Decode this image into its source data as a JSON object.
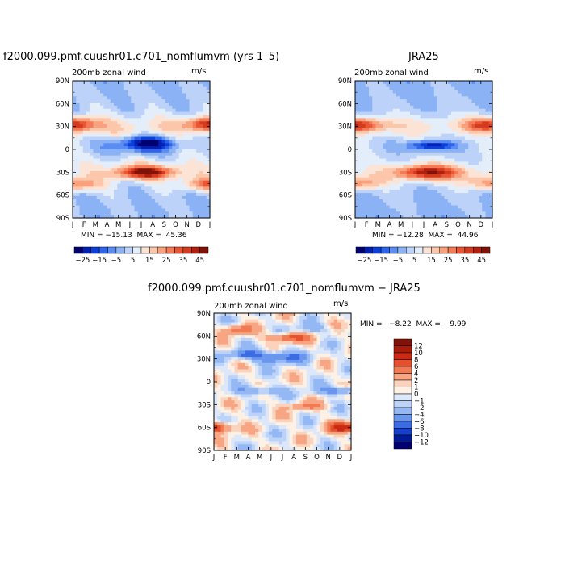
{
  "chart_data": [
    {
      "type": "heatmap",
      "id": "model",
      "title": "f2000.099.pmf.cuushr01.c701_nomflumvm (yrs 1–5)",
      "subtitle_left": "200mb  zonal  wind",
      "subtitle_right": "m/s",
      "x_ticks": [
        "J",
        "F",
        "M",
        "A",
        "M",
        "J",
        "J",
        "A",
        "S",
        "O",
        "N",
        "D",
        "J"
      ],
      "y_ticks": [
        "90N",
        "60N",
        "30N",
        "0",
        "30S",
        "60S",
        "90S"
      ],
      "y_values": [
        90,
        60,
        30,
        0,
        -30,
        -60,
        -90
      ],
      "x_range": [
        1,
        13
      ],
      "y_range": [
        -90,
        90
      ],
      "min_text": "MIN = −15.13  MAX =  45.36",
      "min": -15.13,
      "max": 45.36,
      "colorbar_labels": [
        "−25",
        "−15",
        "−5",
        "5",
        "15",
        "25",
        "35",
        "45"
      ],
      "colorbar_levels": [
        -30,
        -25,
        -20,
        -15,
        -10,
        -5,
        0,
        5,
        10,
        15,
        20,
        25,
        30,
        35,
        40,
        45,
        50
      ]
    },
    {
      "type": "heatmap",
      "id": "obs",
      "title": "JRA25",
      "subtitle_left": "200mb  zonal  wind",
      "subtitle_right": "m/s",
      "x_ticks": [
        "J",
        "F",
        "M",
        "A",
        "M",
        "J",
        "J",
        "A",
        "S",
        "O",
        "N",
        "D",
        "J"
      ],
      "y_ticks": [
        "90N",
        "60N",
        "30N",
        "0",
        "30S",
        "60S",
        "90S"
      ],
      "y_values": [
        90,
        60,
        30,
        0,
        -30,
        -60,
        -90
      ],
      "x_range": [
        1,
        13
      ],
      "y_range": [
        -90,
        90
      ],
      "min_text": "MIN = −12.28  MAX =  44.96",
      "min": -12.28,
      "max": 44.96,
      "colorbar_labels": [
        "−25",
        "−15",
        "−5",
        "5",
        "15",
        "25",
        "35",
        "45"
      ],
      "colorbar_levels": [
        -30,
        -25,
        -20,
        -15,
        -10,
        -5,
        0,
        5,
        10,
        15,
        20,
        25,
        30,
        35,
        40,
        45,
        50
      ]
    },
    {
      "type": "heatmap",
      "id": "diff",
      "title": "f2000.099.pmf.cuushr01.c701_nomflumvm  −  JRA25",
      "subtitle_left": "200mb  zonal  wind",
      "subtitle_right": "m/s",
      "x_ticks": [
        "J",
        "F",
        "M",
        "A",
        "M",
        "J",
        "J",
        "A",
        "S",
        "O",
        "N",
        "D",
        "J"
      ],
      "y_ticks": [
        "90N",
        "60N",
        "30N",
        "0",
        "30S",
        "60S",
        "90S"
      ],
      "y_values": [
        90,
        60,
        30,
        0,
        -30,
        -60,
        -90
      ],
      "x_range": [
        1,
        13
      ],
      "y_range": [
        -90,
        90
      ],
      "min_text": "MIN =   −8.22  MAX =    9.99",
      "min": -8.22,
      "max": 9.99,
      "colorbar_labels": [
        "12",
        "10",
        "8",
        "6",
        "4",
        "2",
        "1",
        "0",
        "−1",
        "−2",
        "−4",
        "−6",
        "−8",
        "−10",
        "−12"
      ],
      "colorbar_levels": [
        12,
        10,
        8,
        6,
        4,
        2,
        1,
        0,
        -1,
        -2,
        -4,
        -6,
        -8,
        -10,
        -12
      ]
    }
  ],
  "colors": {
    "seq": [
      "#000070",
      "#0020b4",
      "#0b3fd8",
      "#2e64ec",
      "#5a8cf2",
      "#8cb2f6",
      "#bcd2f8",
      "#e4eefb",
      "#fbe4d6",
      "#fbc6aa",
      "#f9a07c",
      "#f57a56",
      "#ea5634",
      "#d43a1e",
      "#b0200e",
      "#801208"
    ],
    "div": [
      "#801208",
      "#a81c0c",
      "#cc2a14",
      "#e6502c",
      "#f27a52",
      "#f7a582",
      "#fbd2bc",
      "#fdf0e4",
      "#dce8fa",
      "#bcd2f8",
      "#94b8f4",
      "#6a96ee",
      "#3c6ce4",
      "#1640cc",
      "#001a98",
      "#000070"
    ]
  }
}
